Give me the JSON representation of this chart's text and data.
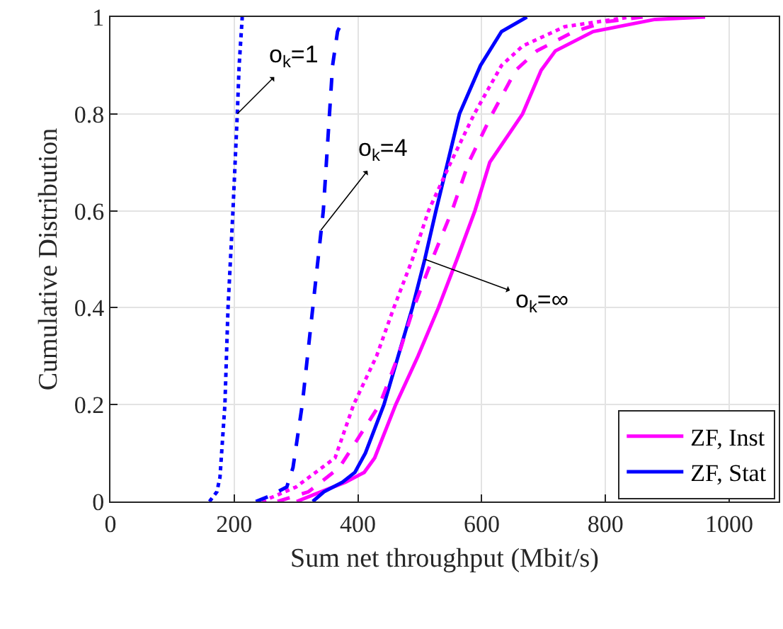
{
  "chart_data": {
    "type": "line",
    "xlabel": "Sum net throughput (Mbit/s)",
    "ylabel": "Cumulative Distribution",
    "xlim": [
      0,
      1080
    ],
    "xticks": [
      0,
      200,
      400,
      600,
      800,
      1000
    ],
    "ylim": [
      0,
      1
    ],
    "yticks": [
      0,
      0.2,
      0.4,
      0.6,
      0.8,
      1
    ],
    "grid": true,
    "legend": "bottom right",
    "marker": "none",
    "series": [
      {
        "name": "ZF, Inst",
        "color": "#ff00ff",
        "line_style": "solid",
        "x": [
          301,
          340,
          380,
          410,
          427,
          461,
          497,
          530,
          560,
          589,
          613,
          666,
          696,
          719,
          780,
          880,
          961
        ],
        "values": [
          0,
          0.02,
          0.04,
          0.06,
          0.09,
          0.2,
          0.3,
          0.4,
          0.5,
          0.6,
          0.7,
          0.8,
          0.89,
          0.93,
          0.97,
          0.995,
          1
        ]
      },
      {
        "name": "ZF, Stat",
        "color": "#0000ff",
        "line_style": "solid",
        "x": [
          327,
          345,
          375,
          395,
          412,
          442,
          465,
          488,
          508,
          526,
          545,
          564,
          598,
          632,
          673
        ],
        "values": [
          0,
          0.02,
          0.04,
          0.06,
          0.1,
          0.2,
          0.3,
          0.4,
          0.5,
          0.6,
          0.7,
          0.8,
          0.9,
          0.97,
          1
        ]
      },
      {
        "color": "#ff00ff",
        "line_style": "dotted",
        "x": [
          245,
          300,
          363,
          393,
          430,
          458,
          488,
          514,
          550,
          588,
          632,
          666,
          734,
          840
        ],
        "values": [
          0,
          0.03,
          0.09,
          0.2,
          0.3,
          0.4,
          0.5,
          0.6,
          0.7,
          0.8,
          0.9,
          0.94,
          0.98,
          1
        ]
      },
      {
        "color": "#ff00ff",
        "line_style": "dashed",
        "x": [
          270,
          320,
          370,
          410,
          435,
          465,
          490,
          520,
          552,
          579,
          617,
          655,
          689,
          749,
          800,
          860
        ],
        "values": [
          0,
          0.02,
          0.07,
          0.15,
          0.2,
          0.3,
          0.4,
          0.5,
          0.6,
          0.7,
          0.8,
          0.89,
          0.93,
          0.97,
          0.99,
          1
        ]
      },
      {
        "color": "#0000ff",
        "line_style": "dotted",
        "x": [
          160,
          172,
          177,
          185,
          190,
          198,
          205,
          208,
          213
        ],
        "values": [
          0,
          0.02,
          0.05,
          0.2,
          0.4,
          0.6,
          0.8,
          0.9,
          1
        ]
      },
      {
        "color": "#0000ff",
        "line_style": "dashed",
        "x": [
          235,
          255,
          285,
          295,
          310,
          327,
          344,
          354,
          359,
          367,
          378
        ],
        "values": [
          0,
          0.01,
          0.03,
          0.07,
          0.2,
          0.4,
          0.6,
          0.8,
          0.9,
          0.97,
          1
        ]
      }
    ],
    "annotations": [
      {
        "text": "o$_{k}$=1",
        "x": 205,
        "y": 0.8
      },
      {
        "text": "o$_{k}$=4",
        "x": 340,
        "y": 0.56
      },
      {
        "text": "o$_{k}$=∞",
        "x": 508,
        "y": 0.5
      }
    ]
  }
}
